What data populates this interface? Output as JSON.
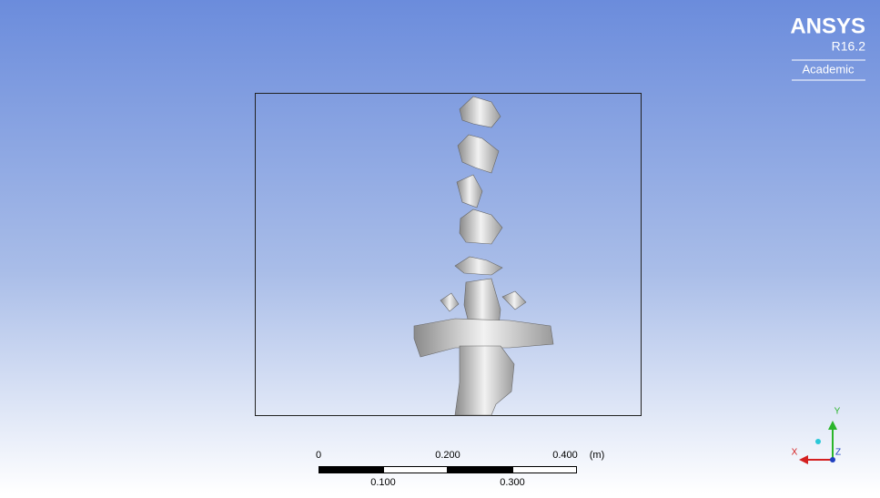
{
  "logo": {
    "brand": "ANSYS",
    "version": "R16.2",
    "edition": "Academic"
  },
  "scale_bar": {
    "top_labels": [
      "0",
      "0.200",
      "0.400"
    ],
    "unit": "(m)",
    "bottom_labels": [
      "0.100",
      "0.300"
    ]
  },
  "axes": {
    "y": "Y",
    "x": "X",
    "z": "Z"
  }
}
